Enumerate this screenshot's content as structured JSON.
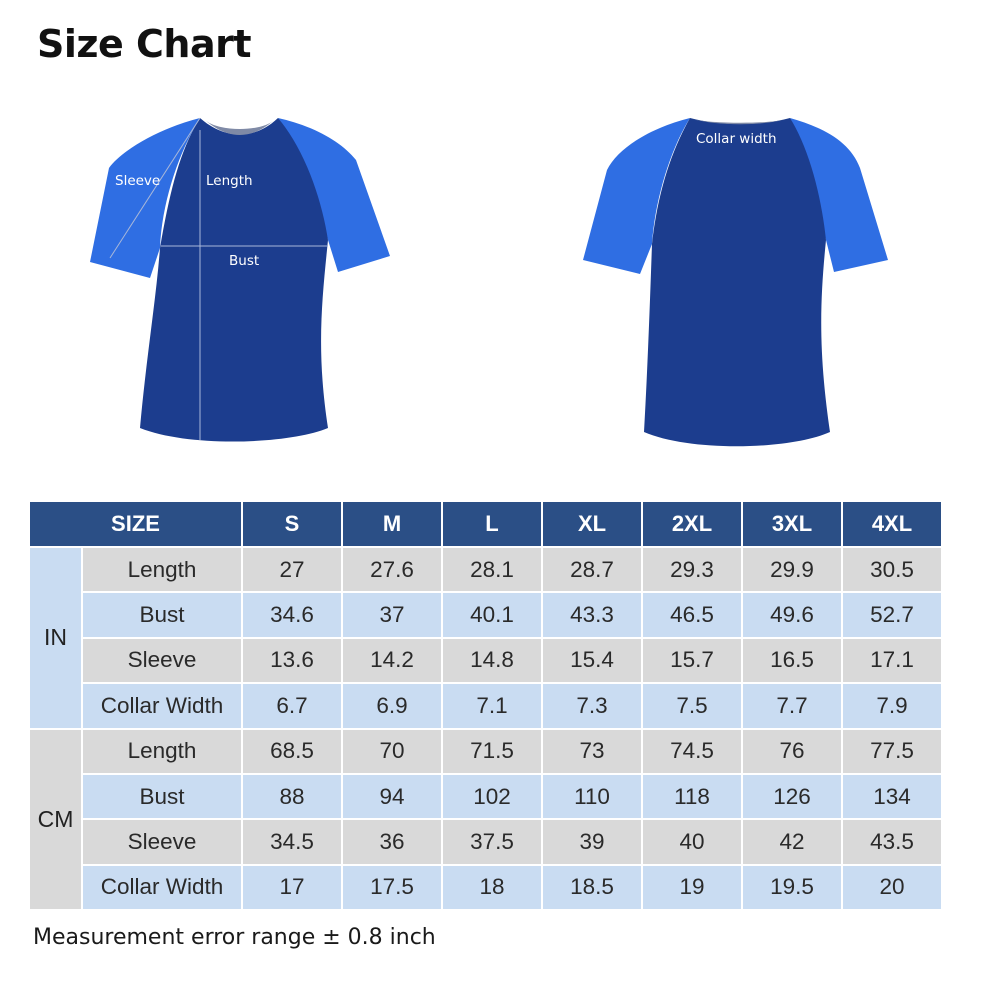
{
  "title": "Size Chart",
  "diagram": {
    "front_labels": {
      "sleeve": "Sleeve",
      "length": "Length",
      "bust": "Bust"
    },
    "back_labels": {
      "collar": "Collar width"
    },
    "colors": {
      "body": "#1c3d8e",
      "sleeve": "#2f6ee3",
      "collar": "#7f8aa6"
    }
  },
  "table": {
    "header": [
      "SIZE",
      "S",
      "M",
      "L",
      "XL",
      "2XL",
      "3XL",
      "4XL"
    ],
    "groups": [
      {
        "unit": "IN",
        "rows": [
          {
            "label": "Length",
            "values": [
              "27",
              "27.6",
              "28.1",
              "28.7",
              "29.3",
              "29.9",
              "30.5"
            ]
          },
          {
            "label": "Bust",
            "values": [
              "34.6",
              "37",
              "40.1",
              "43.3",
              "46.5",
              "49.6",
              "52.7"
            ]
          },
          {
            "label": "Sleeve",
            "values": [
              "13.6",
              "14.2",
              "14.8",
              "15.4",
              "15.7",
              "16.5",
              "17.1"
            ]
          },
          {
            "label": "Collar Width",
            "values": [
              "6.7",
              "6.9",
              "7.1",
              "7.3",
              "7.5",
              "7.7",
              "7.9"
            ]
          }
        ]
      },
      {
        "unit": "CM",
        "rows": [
          {
            "label": "Length",
            "values": [
              "68.5",
              "70",
              "71.5",
              "73",
              "74.5",
              "76",
              "77.5"
            ]
          },
          {
            "label": "Bust",
            "values": [
              "88",
              "94",
              "102",
              "110",
              "118",
              "126",
              "134"
            ]
          },
          {
            "label": "Sleeve",
            "values": [
              "34.5",
              "36",
              "37.5",
              "39",
              "40",
              "42",
              "43.5"
            ]
          },
          {
            "label": "Collar Width",
            "values": [
              "17",
              "17.5",
              "18",
              "18.5",
              "19",
              "19.5",
              "20"
            ]
          }
        ]
      }
    ]
  },
  "footnote": "Measurement error range ± 0.8 inch"
}
